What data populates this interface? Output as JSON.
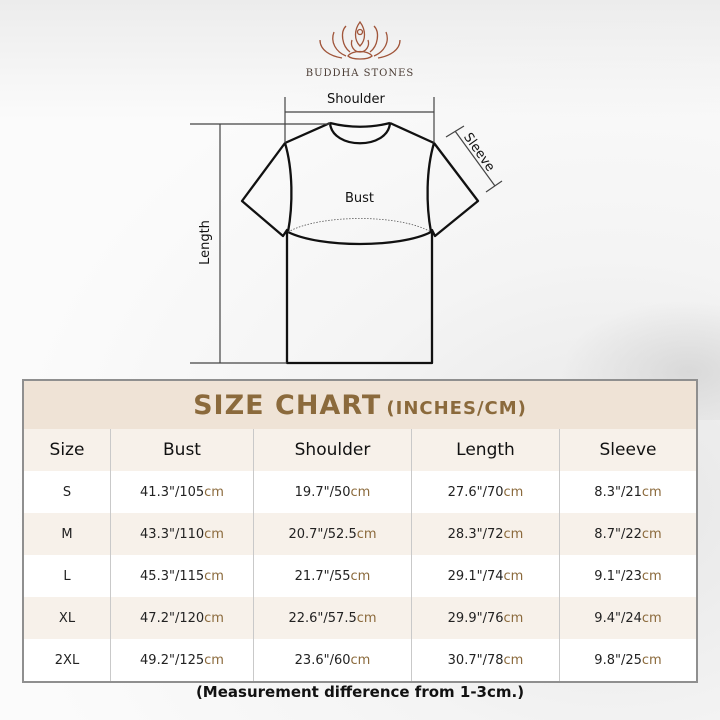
{
  "brand": {
    "name": "BUDDHA STONES",
    "logo_icon": "lotus-meditation-icon",
    "colors": {
      "logo": "#a0553a",
      "accent": "#8b6a3c"
    }
  },
  "diagram": {
    "shoulder": "Shoulder",
    "sleeve": "Sleeve",
    "bust": "Bust",
    "length": "Length"
  },
  "table": {
    "title": "SIZE CHART",
    "subtitle": "(INCHES/CM)",
    "headers": [
      "Size",
      "Bust",
      "Shoulder",
      "Length",
      "Sleeve"
    ],
    "unit": "cm",
    "rows": [
      {
        "size": "S",
        "bust": "41.3\"/105",
        "shoulder": "19.7\"/50",
        "length": "27.6\"/70",
        "sleeve": "8.3\"/21"
      },
      {
        "size": "M",
        "bust": "43.3\"/110",
        "shoulder": "20.7\"/52.5",
        "length": "28.3\"/72",
        "sleeve": "8.7\"/22"
      },
      {
        "size": "L",
        "bust": "45.3\"/115",
        "shoulder": "21.7\"/55",
        "length": "29.1\"/74",
        "sleeve": "9.1\"/23"
      },
      {
        "size": "XL",
        "bust": "47.2\"/120",
        "shoulder": "22.6\"/57.5",
        "length": "29.9\"/76",
        "sleeve": "9.4\"/24"
      },
      {
        "size": "2XL",
        "bust": "49.2\"/125",
        "shoulder": "23.6\"/60",
        "length": "30.7\"/78",
        "sleeve": "9.8\"/25"
      }
    ]
  },
  "note": "(Measurement difference from 1-3cm.)"
}
